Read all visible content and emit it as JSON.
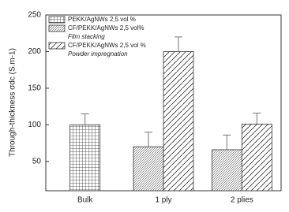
{
  "chart_data": {
    "type": "bar",
    "ylabel": "Through-thickness σdc (S.m-1)",
    "categories": [
      "Bulk",
      "1 ply",
      "2 plies"
    ],
    "series": [
      {
        "name": "PEKK/AgNWs 2,5 vol %",
        "color": "#333333",
        "pattern": "grid",
        "values": [
          100,
          null,
          null
        ],
        "errors": [
          15,
          null,
          null
        ]
      },
      {
        "name": "CF/PEKK/AgNWs 2,5 vol%",
        "method": "Film stacking",
        "color": "#333333",
        "pattern": "diag-fine",
        "values": [
          null,
          70,
          66
        ],
        "errors": [
          null,
          20,
          20
        ]
      },
      {
        "name": "CF/PEKK/AgNWs 2,5 vol %",
        "method": "Powder impregnation",
        "color": "#333333",
        "pattern": "diag-wide",
        "values": [
          null,
          200,
          101
        ],
        "errors": [
          null,
          20,
          15
        ]
      }
    ],
    "ylim": [
      10,
      250
    ],
    "yticks": [
      50,
      100,
      150,
      200,
      250
    ],
    "grid": false,
    "legend": "upper left"
  }
}
